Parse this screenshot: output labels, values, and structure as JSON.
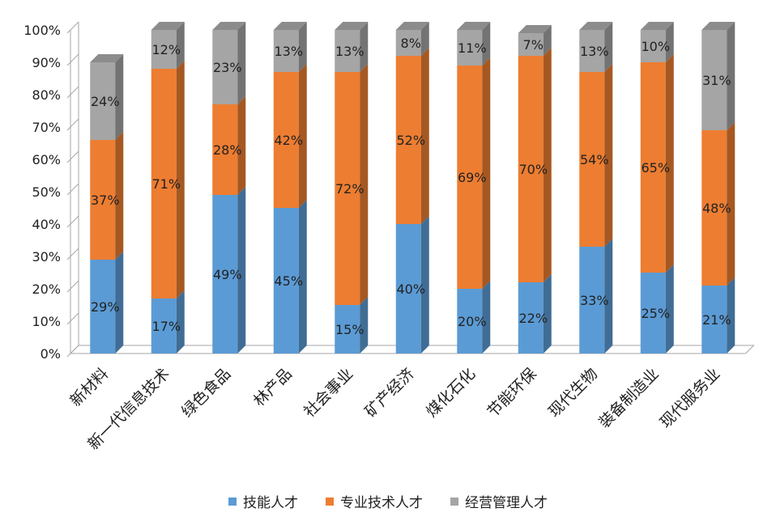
{
  "chart_data": {
    "type": "bar",
    "stacked": true,
    "three_d": true,
    "categories": [
      "新材料",
      "新一代信息技术",
      "绿色食品",
      "林产品",
      "社会事业",
      "矿产经济",
      "煤化石化",
      "节能环保",
      "现代生物",
      "装备制造业",
      "现代服务业"
    ],
    "series": [
      {
        "name": "技能人才",
        "values": [
          29,
          17,
          49,
          45,
          15,
          40,
          20,
          22,
          33,
          25,
          21
        ],
        "labels": [
          "29%",
          "17%",
          "49%",
          "45%",
          "15%",
          "40%",
          "20%",
          "22%",
          "33%",
          "25%",
          "21%"
        ],
        "color": "#5B9BD5"
      },
      {
        "name": "专业技术人才",
        "values": [
          37,
          71,
          28,
          42,
          72,
          52,
          69,
          70,
          54,
          65,
          48
        ],
        "labels": [
          "37%",
          "71%",
          "28%",
          "42%",
          "72%",
          "52%",
          "69%",
          "70%",
          "54%",
          "65%",
          "48%"
        ],
        "color": "#ED7D31"
      },
      {
        "name": "经营管理人才",
        "values": [
          24,
          12,
          23,
          13,
          13,
          8,
          11,
          7,
          13,
          10,
          31
        ],
        "labels": [
          "24%",
          "12%",
          "23%",
          "13%",
          "13%",
          "8%",
          "11%",
          "7%",
          "13%",
          "10%",
          "31%"
        ],
        "color": "#A5A5A5"
      }
    ],
    "y_ticks": [
      "0%",
      "10%",
      "20%",
      "30%",
      "40%",
      "50%",
      "60%",
      "70%",
      "80%",
      "90%",
      "100%"
    ],
    "ylim": [
      0,
      100
    ],
    "grid": false,
    "legend_position": "bottom"
  }
}
